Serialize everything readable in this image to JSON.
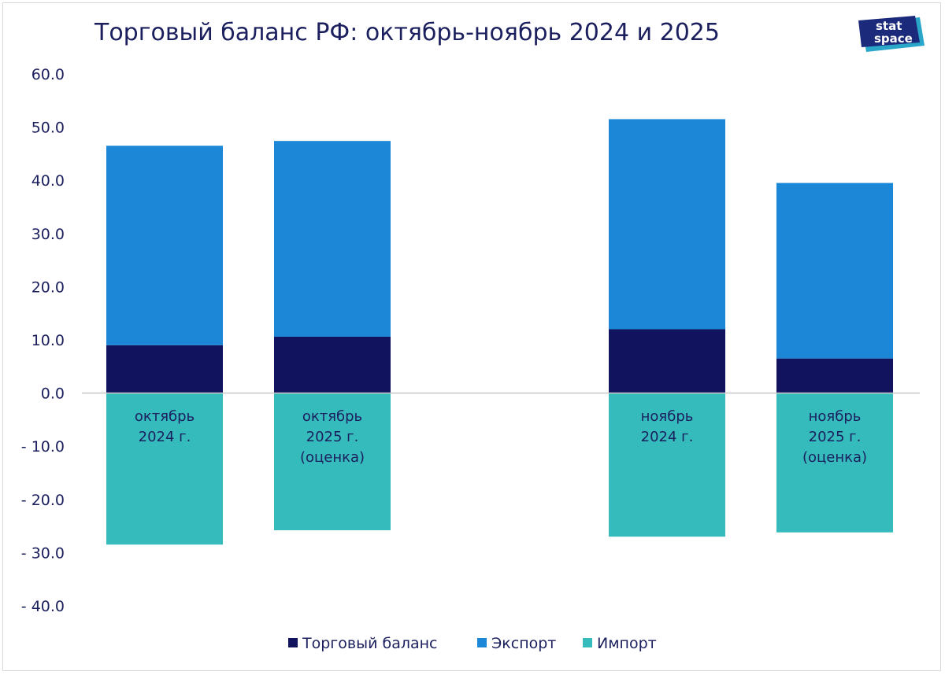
{
  "logo": {
    "line1": "stat",
    "line2": "space"
  },
  "colors": {
    "balance": "#12135f",
    "export": "#1c87d7",
    "import": "#36bbbd",
    "axis": "#c8c8c8",
    "text": "#1b1f5e"
  },
  "chart_data": {
    "type": "bar",
    "title": "Торговый баланс РФ: октябрь-ноябрь 2024 и 2025",
    "xlabel": "",
    "ylabel": "",
    "ylim": [
      -40,
      60
    ],
    "yticks": [
      "60.0",
      "50.0",
      "40.0",
      "30.0",
      "20.0",
      "10.0",
      "0.0",
      "- 10.0",
      "- 20.0",
      "- 30.0",
      "- 40.0"
    ],
    "categories": [
      [
        "октябрь",
        "2024 г."
      ],
      [
        "октябрь",
        "2025 г.",
        "(оценка)"
      ],
      [
        "ноябрь",
        "2024 г."
      ],
      [
        "ноябрь",
        "2025 г.",
        "(оценка)"
      ]
    ],
    "series": [
      {
        "name": "Торговый баланс",
        "values": [
          9.0,
          10.6,
          12.0,
          6.5
        ]
      },
      {
        "name": "Экспорт",
        "values": [
          37.5,
          36.8,
          39.5,
          33.0
        ]
      },
      {
        "name": "Импорт",
        "values": [
          -28.5,
          -25.8,
          -27.0,
          -26.2
        ]
      }
    ],
    "legend": "bottom"
  }
}
